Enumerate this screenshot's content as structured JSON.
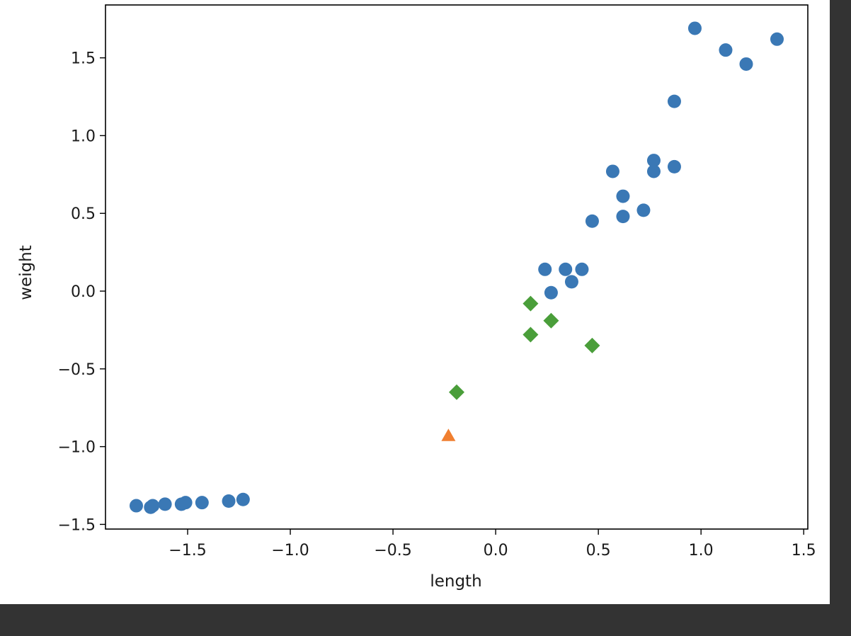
{
  "chart_data": {
    "type": "scatter",
    "title": "",
    "xlabel": "length",
    "ylabel": "weight",
    "xlim": [
      -1.9,
      1.52
    ],
    "ylim": [
      -1.53,
      1.84
    ],
    "xticks": [
      -1.5,
      -1.0,
      -0.5,
      0.0,
      0.5,
      1.0,
      1.5
    ],
    "xtick_labels": [
      "−1.5",
      "−1.0",
      "−0.5",
      "0.0",
      "0.5",
      "1.0",
      "1.5"
    ],
    "yticks": [
      -1.5,
      -1.0,
      -0.5,
      0.0,
      0.5,
      1.0,
      1.5
    ],
    "ytick_labels": [
      "−1.5",
      "−1.0",
      "−0.5",
      "0.0",
      "0.5",
      "1.0",
      "1.5"
    ],
    "grid": false,
    "legend": "none",
    "series": [
      {
        "marker": "circle",
        "color": "#3a78b5",
        "x": [
          -1.75,
          -1.67,
          -1.68,
          -1.61,
          -1.53,
          -1.51,
          -1.43,
          -1.3,
          -1.23,
          0.24,
          0.27,
          0.34,
          0.37,
          0.42,
          0.47,
          0.57,
          0.62,
          0.62,
          0.72,
          0.77,
          0.77,
          0.87,
          0.87,
          0.97,
          1.12,
          1.22,
          1.37
        ],
        "y": [
          -1.38,
          -1.38,
          -1.39,
          -1.37,
          -1.37,
          -1.36,
          -1.36,
          -1.35,
          -1.34,
          0.14,
          -0.01,
          0.14,
          0.06,
          0.14,
          0.45,
          0.77,
          0.61,
          0.48,
          0.52,
          0.84,
          0.77,
          0.8,
          1.22,
          1.69,
          1.55,
          1.46,
          1.62
        ]
      },
      {
        "marker": "triangle",
        "color": "#f07f30",
        "x": [
          -0.23
        ],
        "y": [
          -0.93
        ]
      },
      {
        "marker": "diamond",
        "color": "#4a9e3a",
        "x": [
          -0.19,
          0.17,
          0.17,
          0.27,
          0.47
        ],
        "y": [
          -0.65,
          -0.08,
          -0.28,
          -0.19,
          -0.35
        ]
      }
    ]
  }
}
